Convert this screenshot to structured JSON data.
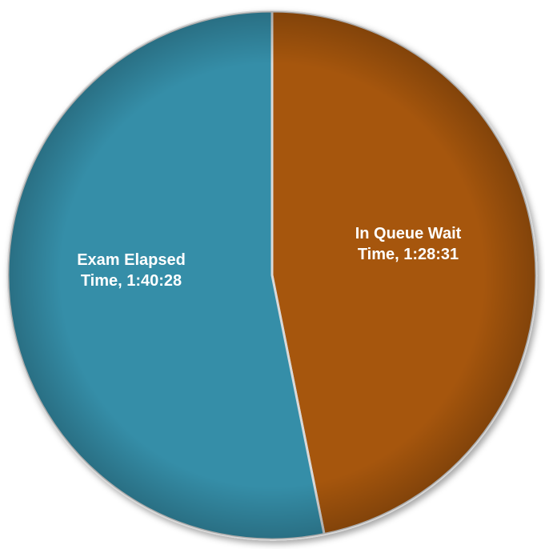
{
  "chart_data": {
    "type": "pie",
    "title": "",
    "slices": [
      {
        "label": "In Queue Wait Time, 1:28:31",
        "label_lines": [
          "In Queue Wait",
          "Time, 1:28:31"
        ],
        "value_text": "1:28:31",
        "seconds": 5311,
        "color": "#A65710"
      },
      {
        "label": "Exam Elapsed Time, 1:40:28",
        "label_lines": [
          "Exam Elapsed",
          "Time, 1:40:28"
        ],
        "value_text": "1:40:28",
        "seconds": 6028,
        "color": "#358EA8"
      }
    ],
    "start_angle_deg": 0,
    "direction": "clockwise",
    "legend": "none"
  }
}
